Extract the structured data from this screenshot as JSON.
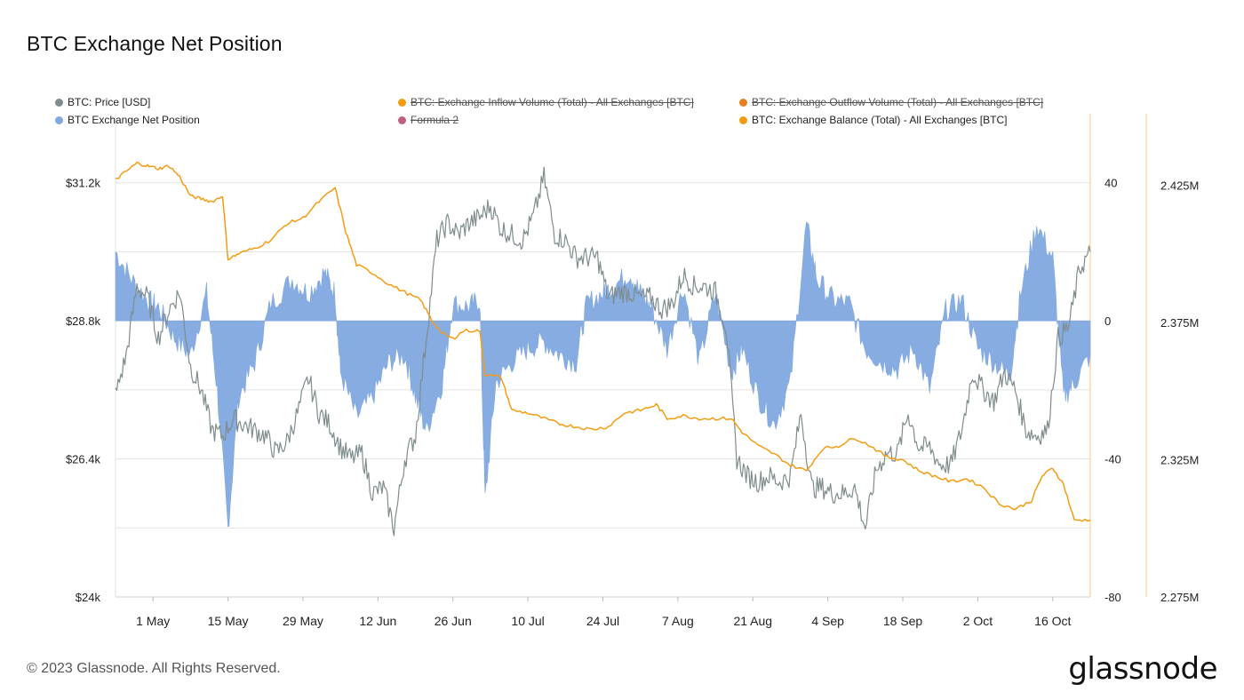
{
  "header": {
    "title": "BTC Exchange Net Position"
  },
  "legend": [
    {
      "label": "BTC: Price [USD]",
      "color": "#7f8c8d",
      "disabled": false
    },
    {
      "label": "BTC: Exchange Inflow Volume (Total) - All Exchanges [BTC]",
      "color": "#f39c12",
      "disabled": true
    },
    {
      "label": "BTC: Exchange Outflow Volume (Total) - All Exchanges [BTC]",
      "color": "#e67e22",
      "disabled": true
    },
    {
      "label": "BTC Exchange Net Position",
      "color": "#7fa8e0",
      "disabled": false
    },
    {
      "label": "Formula 2",
      "color": "#c0607a",
      "disabled": true
    },
    {
      "label": "BTC: Exchange Balance (Total) - All Exchanges [BTC]",
      "color": "#f39c12",
      "disabled": false
    }
  ],
  "footer": {
    "copyright": "© 2023 Glassnode. All Rights Reserved.",
    "brand": "glassnode"
  },
  "chart_data": {
    "type": "line",
    "x_ticks": [
      "1 May",
      "15 May",
      "29 May",
      "12 Jun",
      "26 Jun",
      "10 Jul",
      "24 Jul",
      "7 Aug",
      "21 Aug",
      "4 Sep",
      "18 Sep",
      "2 Oct",
      "16 Oct"
    ],
    "x_range": [
      "2023-04-24",
      "2023-10-23"
    ],
    "axes": {
      "price": {
        "ticks": [
          "$24k",
          "$26.4k",
          "$28.8k",
          "$31.2k"
        ],
        "range": [
          24000,
          32400
        ]
      },
      "net_position": {
        "ticks": [
          "-80",
          "-40",
          "0",
          "40"
        ],
        "range": [
          -80,
          60
        ]
      },
      "balance": {
        "ticks": [
          "2.275M",
          "2.325M",
          "2.375M",
          "2.425M"
        ],
        "range": [
          2275000,
          2451000
        ]
      }
    },
    "grid": true,
    "series": [
      {
        "name": "BTC: Price [USD]",
        "color": "#7f8c8d",
        "axis": "price",
        "type": "line",
        "points": [
          [
            "2023-04-24",
            27500
          ],
          [
            "2023-04-26",
            28200
          ],
          [
            "2023-04-28",
            29400
          ],
          [
            "2023-04-30",
            29200
          ],
          [
            "2023-05-02",
            28500
          ],
          [
            "2023-05-04",
            29000
          ],
          [
            "2023-05-06",
            29300
          ],
          [
            "2023-05-08",
            28000
          ],
          [
            "2023-05-10",
            27600
          ],
          [
            "2023-05-12",
            26900
          ],
          [
            "2023-05-14",
            26800
          ],
          [
            "2023-05-16",
            27100
          ],
          [
            "2023-05-18",
            27000
          ],
          [
            "2023-05-20",
            26900
          ],
          [
            "2023-05-22",
            26800
          ],
          [
            "2023-05-24",
            26500
          ],
          [
            "2023-05-26",
            26700
          ],
          [
            "2023-05-28",
            27200
          ],
          [
            "2023-05-30",
            27800
          ],
          [
            "2023-06-01",
            27200
          ],
          [
            "2023-06-03",
            27000
          ],
          [
            "2023-06-05",
            26600
          ],
          [
            "2023-06-07",
            26400
          ],
          [
            "2023-06-09",
            26500
          ],
          [
            "2023-06-11",
            25800
          ],
          [
            "2023-06-13",
            25900
          ],
          [
            "2023-06-15",
            25200
          ],
          [
            "2023-06-17",
            26400
          ],
          [
            "2023-06-19",
            26800
          ],
          [
            "2023-06-21",
            28500
          ],
          [
            "2023-06-23",
            30200
          ],
          [
            "2023-06-25",
            30500
          ],
          [
            "2023-06-27",
            30300
          ],
          [
            "2023-06-29",
            30500
          ],
          [
            "2023-07-01",
            30600
          ],
          [
            "2023-07-03",
            30800
          ],
          [
            "2023-07-05",
            30400
          ],
          [
            "2023-07-07",
            30300
          ],
          [
            "2023-07-09",
            30200
          ],
          [
            "2023-07-11",
            30600
          ],
          [
            "2023-07-13",
            31300
          ],
          [
            "2023-07-15",
            30300
          ],
          [
            "2023-07-17",
            30200
          ],
          [
            "2023-07-19",
            29900
          ],
          [
            "2023-07-21",
            29900
          ],
          [
            "2023-07-23",
            29900
          ],
          [
            "2023-07-25",
            29200
          ],
          [
            "2023-07-27",
            29300
          ],
          [
            "2023-07-29",
            29300
          ],
          [
            "2023-07-31",
            29200
          ],
          [
            "2023-08-02",
            29200
          ],
          [
            "2023-08-04",
            29000
          ],
          [
            "2023-08-06",
            29100
          ],
          [
            "2023-08-08",
            29600
          ],
          [
            "2023-08-10",
            29400
          ],
          [
            "2023-08-12",
            29400
          ],
          [
            "2023-08-14",
            29300
          ],
          [
            "2023-08-16",
            28700
          ],
          [
            "2023-08-18",
            26400
          ],
          [
            "2023-08-20",
            26100
          ],
          [
            "2023-08-22",
            26000
          ],
          [
            "2023-08-24",
            26100
          ],
          [
            "2023-08-26",
            26000
          ],
          [
            "2023-08-28",
            26100
          ],
          [
            "2023-08-30",
            27200
          ],
          [
            "2023-09-01",
            25900
          ],
          [
            "2023-09-03",
            25900
          ],
          [
            "2023-09-05",
            25800
          ],
          [
            "2023-09-07",
            25800
          ],
          [
            "2023-09-09",
            25900
          ],
          [
            "2023-09-11",
            25200
          ],
          [
            "2023-09-13",
            26200
          ],
          [
            "2023-09-15",
            26500
          ],
          [
            "2023-09-17",
            26500
          ],
          [
            "2023-09-19",
            27200
          ],
          [
            "2023-09-21",
            26600
          ],
          [
            "2023-09-23",
            26600
          ],
          [
            "2023-09-25",
            26300
          ],
          [
            "2023-09-27",
            26300
          ],
          [
            "2023-09-29",
            26900
          ],
          [
            "2023-10-01",
            27900
          ],
          [
            "2023-10-03",
            27600
          ],
          [
            "2023-10-05",
            27400
          ],
          [
            "2023-10-07",
            27900
          ],
          [
            "2023-10-09",
            27600
          ],
          [
            "2023-10-11",
            26900
          ],
          [
            "2023-10-13",
            26800
          ],
          [
            "2023-10-15",
            26900
          ],
          [
            "2023-10-17",
            28500
          ],
          [
            "2023-10-19",
            28700
          ],
          [
            "2023-10-21",
            29700
          ],
          [
            "2023-10-23",
            30000
          ]
        ]
      },
      {
        "name": "BTC Exchange Net Position",
        "color": "#7fa8e0",
        "axis": "net_position",
        "type": "area",
        "points": [
          [
            "2023-04-24",
            20
          ],
          [
            "2023-04-27",
            12
          ],
          [
            "2023-04-30",
            6
          ],
          [
            "2023-05-02",
            4
          ],
          [
            "2023-05-05",
            -5
          ],
          [
            "2023-05-08",
            -10
          ],
          [
            "2023-05-11",
            8
          ],
          [
            "2023-05-13",
            -20
          ],
          [
            "2023-05-15",
            -60
          ],
          [
            "2023-05-17",
            -22
          ],
          [
            "2023-05-20",
            -12
          ],
          [
            "2023-05-23",
            5
          ],
          [
            "2023-05-27",
            12
          ],
          [
            "2023-05-30",
            8
          ],
          [
            "2023-06-02",
            14
          ],
          [
            "2023-06-04",
            8
          ],
          [
            "2023-06-05",
            -15
          ],
          [
            "2023-06-08",
            -28
          ],
          [
            "2023-06-11",
            -22
          ],
          [
            "2023-06-14",
            -12
          ],
          [
            "2023-06-17",
            -10
          ],
          [
            "2023-06-19",
            -22
          ],
          [
            "2023-06-21",
            -32
          ],
          [
            "2023-06-24",
            -18
          ],
          [
            "2023-06-26",
            5
          ],
          [
            "2023-06-29",
            4
          ],
          [
            "2023-07-01",
            6
          ],
          [
            "2023-07-02",
            -52
          ],
          [
            "2023-07-04",
            -18
          ],
          [
            "2023-07-07",
            -12
          ],
          [
            "2023-07-10",
            -8
          ],
          [
            "2023-07-13",
            -6
          ],
          [
            "2023-07-16",
            -10
          ],
          [
            "2023-07-19",
            -12
          ],
          [
            "2023-07-21",
            5
          ],
          [
            "2023-07-24",
            8
          ],
          [
            "2023-07-26",
            10
          ],
          [
            "2023-07-29",
            14
          ],
          [
            "2023-07-31",
            8
          ],
          [
            "2023-08-02",
            4
          ],
          [
            "2023-08-05",
            -8
          ],
          [
            "2023-08-08",
            10
          ],
          [
            "2023-08-11",
            -12
          ],
          [
            "2023-08-14",
            8
          ],
          [
            "2023-08-17",
            -15
          ],
          [
            "2023-08-19",
            -8
          ],
          [
            "2023-08-22",
            -22
          ],
          [
            "2023-08-25",
            -30
          ],
          [
            "2023-08-28",
            -18
          ],
          [
            "2023-08-31",
            28
          ],
          [
            "2023-09-02",
            12
          ],
          [
            "2023-09-05",
            6
          ],
          [
            "2023-09-08",
            5
          ],
          [
            "2023-09-11",
            -8
          ],
          [
            "2023-09-14",
            -12
          ],
          [
            "2023-09-17",
            -14
          ],
          [
            "2023-09-20",
            -8
          ],
          [
            "2023-09-23",
            -20
          ],
          [
            "2023-09-26",
            3
          ],
          [
            "2023-09-29",
            6
          ],
          [
            "2023-10-02",
            -8
          ],
          [
            "2023-10-05",
            -12
          ],
          [
            "2023-10-08",
            -16
          ],
          [
            "2023-10-10",
            8
          ],
          [
            "2023-10-13",
            28
          ],
          [
            "2023-10-16",
            18
          ],
          [
            "2023-10-18",
            -22
          ],
          [
            "2023-10-20",
            -18
          ],
          [
            "2023-10-23",
            -10
          ]
        ]
      },
      {
        "name": "BTC: Exchange Balance (Total) - All Exchanges [BTC]",
        "color": "#f39c12",
        "axis": "balance",
        "type": "line",
        "points": [
          [
            "2023-04-24",
            2427000
          ],
          [
            "2023-04-26",
            2430000
          ],
          [
            "2023-04-28",
            2433000
          ],
          [
            "2023-04-30",
            2432000
          ],
          [
            "2023-05-02",
            2431000
          ],
          [
            "2023-05-04",
            2432000
          ],
          [
            "2023-05-06",
            2428000
          ],
          [
            "2023-05-08",
            2421000
          ],
          [
            "2023-05-10",
            2420000
          ],
          [
            "2023-05-12",
            2419000
          ],
          [
            "2023-05-14",
            2421000
          ],
          [
            "2023-05-15",
            2398000
          ],
          [
            "2023-05-17",
            2400000
          ],
          [
            "2023-05-20",
            2402000
          ],
          [
            "2023-05-23",
            2405000
          ],
          [
            "2023-05-26",
            2411000
          ],
          [
            "2023-05-29",
            2413000
          ],
          [
            "2023-06-01",
            2419000
          ],
          [
            "2023-06-04",
            2424000
          ],
          [
            "2023-06-06",
            2408000
          ],
          [
            "2023-06-08",
            2396000
          ],
          [
            "2023-06-11",
            2393000
          ],
          [
            "2023-06-14",
            2389000
          ],
          [
            "2023-06-17",
            2386000
          ],
          [
            "2023-06-20",
            2383000
          ],
          [
            "2023-06-22",
            2376000
          ],
          [
            "2023-06-24",
            2371000
          ],
          [
            "2023-06-26",
            2369000
          ],
          [
            "2023-06-28",
            2372000
          ],
          [
            "2023-07-01",
            2372000
          ],
          [
            "2023-07-02",
            2356000
          ],
          [
            "2023-07-05",
            2355000
          ],
          [
            "2023-07-07",
            2343000
          ],
          [
            "2023-07-10",
            2342000
          ],
          [
            "2023-07-13",
            2340000
          ],
          [
            "2023-07-16",
            2338000
          ],
          [
            "2023-07-19",
            2337000
          ],
          [
            "2023-07-22",
            2336000
          ],
          [
            "2023-07-25",
            2337000
          ],
          [
            "2023-07-28",
            2342000
          ],
          [
            "2023-07-31",
            2343000
          ],
          [
            "2023-08-03",
            2345000
          ],
          [
            "2023-08-05",
            2340000
          ],
          [
            "2023-08-08",
            2341000
          ],
          [
            "2023-08-11",
            2340000
          ],
          [
            "2023-08-14",
            2340000
          ],
          [
            "2023-08-17",
            2340000
          ],
          [
            "2023-08-19",
            2335000
          ],
          [
            "2023-08-22",
            2330000
          ],
          [
            "2023-08-25",
            2327000
          ],
          [
            "2023-08-28",
            2323000
          ],
          [
            "2023-08-31",
            2321000
          ],
          [
            "2023-09-03",
            2329000
          ],
          [
            "2023-09-06",
            2330000
          ],
          [
            "2023-09-09",
            2333000
          ],
          [
            "2023-09-12",
            2330000
          ],
          [
            "2023-09-15",
            2326000
          ],
          [
            "2023-09-18",
            2325000
          ],
          [
            "2023-09-21",
            2321000
          ],
          [
            "2023-09-24",
            2319000
          ],
          [
            "2023-09-27",
            2317000
          ],
          [
            "2023-09-30",
            2318000
          ],
          [
            "2023-10-03",
            2315000
          ],
          [
            "2023-10-06",
            2309000
          ],
          [
            "2023-10-09",
            2307000
          ],
          [
            "2023-10-12",
            2310000
          ],
          [
            "2023-10-14",
            2319000
          ],
          [
            "2023-10-16",
            2322000
          ],
          [
            "2023-10-18",
            2316000
          ],
          [
            "2023-10-20",
            2303000
          ],
          [
            "2023-10-23",
            2303000
          ]
        ]
      }
    ]
  }
}
